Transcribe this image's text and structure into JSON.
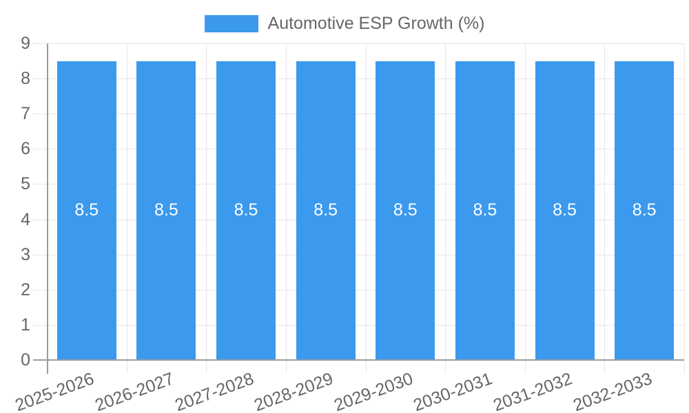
{
  "colors": {
    "bar": "#3b99ee",
    "grid": "#e6e6e6",
    "axis": "#9b9b9b",
    "text": "#666666",
    "bar_label": "#ffffff"
  },
  "chart_data": {
    "type": "bar",
    "title": "Automotive ESP Growth (%)",
    "xlabel": "",
    "ylabel": "",
    "categories": [
      "2025-2026",
      "2026-2027",
      "2027-2028",
      "2028-2029",
      "2029-2030",
      "2030-2031",
      "2031-2032",
      "2032-2033"
    ],
    "series": [
      {
        "name": "Automotive ESP Growth (%)",
        "values": [
          8.5,
          8.5,
          8.5,
          8.5,
          8.5,
          8.5,
          8.5,
          8.5
        ]
      }
    ],
    "bar_value_labels": [
      "8.5",
      "8.5",
      "8.5",
      "8.5",
      "8.5",
      "8.5",
      "8.5",
      "8.5"
    ],
    "ylim": [
      0,
      9
    ],
    "yticks": [
      0,
      1,
      2,
      3,
      4,
      5,
      6,
      7,
      8,
      9
    ],
    "grid": true,
    "legend_position": "top",
    "x_label_rotation_deg": -20
  }
}
